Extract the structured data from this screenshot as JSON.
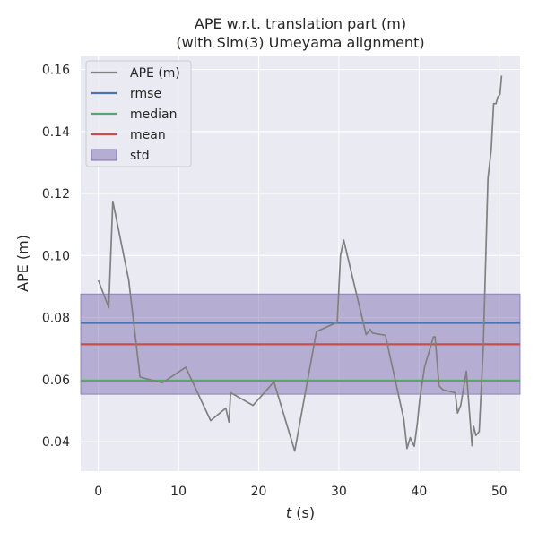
{
  "chart_data": {
    "type": "line",
    "title": "APE w.r.t. translation part (m)",
    "subtitle": "(with Sim(3) Umeyama alignment)",
    "xlabel_italic": "t",
    "xlabel_rest": " (s)",
    "ylabel": "APE (m)",
    "xlim": [
      -2.2,
      52.6
    ],
    "ylim": [
      0.0305,
      0.1645
    ],
    "x_ticks": [
      0,
      10,
      20,
      30,
      40,
      50
    ],
    "x_tick_labels": [
      "0",
      "10",
      "20",
      "30",
      "40",
      "50"
    ],
    "y_ticks": [
      0.04,
      0.06,
      0.08,
      0.1,
      0.12,
      0.14,
      0.16
    ],
    "y_tick_labels": [
      "0.04",
      "0.06",
      "0.08",
      "0.10",
      "0.12",
      "0.14",
      "0.16"
    ],
    "grid": true,
    "legend_position": "top-left",
    "legend": [
      {
        "label": "APE (m)",
        "kind": "line",
        "color": "#808080"
      },
      {
        "label": "rmse",
        "kind": "line",
        "color": "#4c72b0"
      },
      {
        "label": "median",
        "kind": "line",
        "color": "#55a868"
      },
      {
        "label": "mean",
        "kind": "line",
        "color": "#c44e52"
      },
      {
        "label": "std",
        "kind": "patch",
        "color": "#8172b2"
      }
    ],
    "stats": {
      "rmse": 0.0783,
      "median": 0.0597,
      "mean": 0.0714,
      "std_band": [
        0.0553,
        0.0876
      ]
    },
    "series": [
      {
        "name": "APE (m)",
        "color": "#808080",
        "x": [
          0.0,
          1.3,
          1.8,
          3.8,
          5.2,
          8.0,
          10.9,
          14.0,
          15.9,
          16.3,
          16.5,
          19.3,
          21.9,
          24.5,
          27.2,
          29.8,
          30.2,
          30.6,
          33.4,
          33.9,
          34.2,
          35.8,
          38.1,
          38.5,
          38.9,
          39.4,
          39.8,
          40.1,
          40.7,
          41.8,
          42.0,
          42.5,
          43.0,
          44.5,
          44.8,
          45.2,
          45.9,
          46.6,
          46.8,
          47.1,
          47.5,
          48.0,
          48.6,
          49.0,
          49.3,
          49.6,
          49.8,
          50.1,
          50.3
        ],
        "y": [
          0.092,
          0.0832,
          0.1175,
          0.092,
          0.0608,
          0.059,
          0.064,
          0.0468,
          0.0508,
          0.0463,
          0.0558,
          0.0517,
          0.0593,
          0.037,
          0.0755,
          0.0785,
          0.1,
          0.105,
          0.0745,
          0.0762,
          0.075,
          0.0743,
          0.0473,
          0.0378,
          0.0413,
          0.0385,
          0.046,
          0.054,
          0.0642,
          0.0738,
          0.0738,
          0.058,
          0.0567,
          0.0558,
          0.0492,
          0.0517,
          0.0627,
          0.0387,
          0.045,
          0.042,
          0.0433,
          0.07,
          0.125,
          0.134,
          0.149,
          0.149,
          0.151,
          0.152,
          0.158
        ]
      }
    ]
  }
}
